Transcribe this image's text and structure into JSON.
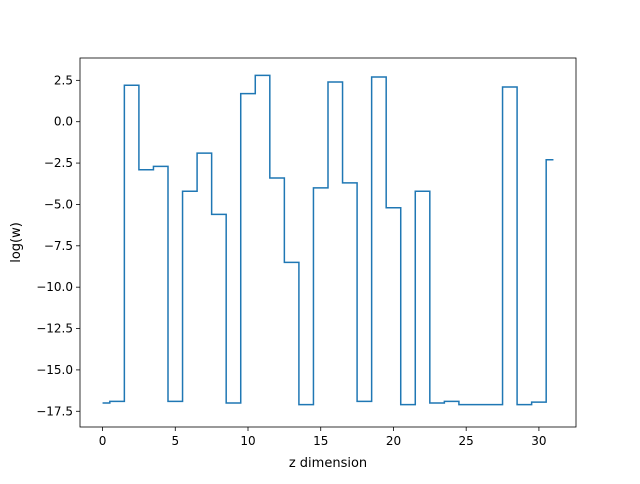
{
  "chart_data": {
    "type": "line",
    "drawstyle": "steps-mid",
    "title": "",
    "xlabel": "z dimension",
    "ylabel": "log(w)",
    "xlim": [
      -1.55,
      32.55
    ],
    "ylim": [
      -18.45,
      3.85
    ],
    "xticks": [
      0,
      5,
      10,
      15,
      20,
      25,
      30
    ],
    "xtick_labels": [
      "0",
      "5",
      "10",
      "15",
      "20",
      "25",
      "30"
    ],
    "yticks": [
      2.5,
      0.0,
      -2.5,
      -5.0,
      -7.5,
      -10.0,
      -12.5,
      -15.0,
      -17.5
    ],
    "ytick_labels": [
      "2.5",
      "0.0",
      "−2.5",
      "−5.0",
      "−7.5",
      "−10.0",
      "−12.5",
      "−15.0",
      "−17.5"
    ],
    "grid": false,
    "legend": "none",
    "series": [
      {
        "color": "#1f77b4",
        "x": [
          0,
          1,
          2,
          3,
          4,
          5,
          6,
          7,
          8,
          9,
          10,
          11,
          12,
          13,
          14,
          15,
          16,
          17,
          18,
          19,
          20,
          21,
          22,
          23,
          24,
          25,
          26,
          27,
          28,
          29,
          30,
          31
        ],
        "values": [
          -17.0,
          -16.9,
          2.2,
          -2.9,
          -2.7,
          -16.9,
          -4.2,
          -1.9,
          -5.6,
          -17.0,
          1.7,
          2.8,
          -3.4,
          -8.5,
          -17.1,
          -4.0,
          2.4,
          -3.7,
          -16.9,
          2.7,
          -5.2,
          -17.1,
          -4.2,
          -17.0,
          -16.9,
          -17.1,
          -17.1,
          -17.1,
          2.1,
          -17.1,
          -16.95,
          -2.3
        ]
      }
    ]
  }
}
